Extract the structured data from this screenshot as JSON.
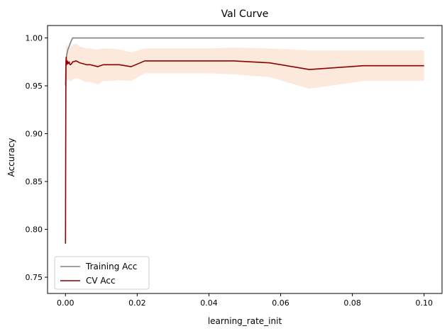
{
  "chart_data": {
    "type": "line",
    "title": "Val Curve",
    "xlabel": "learning_rate_init",
    "ylabel": "Accuracy",
    "xlim": [
      -0.005,
      0.105
    ],
    "ylim": [
      0.733,
      1.013
    ],
    "xticks": [
      0.0,
      0.02,
      0.04,
      0.06,
      0.08,
      0.1
    ],
    "xtick_labels": [
      "0.00",
      "0.02",
      "0.04",
      "0.06",
      "0.08",
      "0.10"
    ],
    "yticks": [
      0.75,
      0.8,
      0.85,
      0.9,
      0.95,
      1.0
    ],
    "ytick_labels": [
      "0.75",
      "0.80",
      "0.85",
      "0.90",
      "0.95",
      "1.00"
    ],
    "grid": false,
    "legend_position": "lower-left",
    "series": [
      {
        "name": "Training Acc",
        "color": "#808080",
        "x": [
          1e-05,
          0.0001,
          0.0002,
          0.0004,
          0.0006,
          0.0009,
          0.0012,
          0.0016,
          0.002,
          0.003,
          0.005,
          0.02,
          0.05,
          0.1
        ],
        "y": [
          0.95,
          0.97,
          0.978,
          0.983,
          0.987,
          0.99,
          0.993,
          0.997,
          1.0,
          1.0,
          1.0,
          1.0,
          1.0,
          1.0
        ]
      },
      {
        "name": "CV Acc",
        "color": "#8b0000",
        "x": [
          1e-05,
          5e-05,
          0.0001,
          0.00015,
          0.0002,
          0.0003,
          0.0005,
          0.0007,
          0.001,
          0.0013,
          0.0017,
          0.002,
          0.003,
          0.004,
          0.005,
          0.006,
          0.007,
          0.008,
          0.009,
          0.0105,
          0.0125,
          0.015,
          0.0183,
          0.0221,
          0.027,
          0.033,
          0.04,
          0.047,
          0.057,
          0.068,
          0.083,
          0.1
        ],
        "y": [
          0.785,
          0.86,
          0.94,
          0.975,
          0.98,
          0.972,
          0.976,
          0.973,
          0.975,
          0.972,
          0.973,
          0.975,
          0.976,
          0.974,
          0.973,
          0.972,
          0.972,
          0.971,
          0.97,
          0.972,
          0.972,
          0.972,
          0.97,
          0.976,
          0.976,
          0.976,
          0.976,
          0.976,
          0.974,
          0.967,
          0.971,
          0.971
        ],
        "band_lower": [
          0.75,
          0.83,
          0.92,
          0.955,
          0.96,
          0.955,
          0.956,
          0.955,
          0.957,
          0.955,
          0.955,
          0.957,
          0.958,
          0.957,
          0.955,
          0.954,
          0.954,
          0.953,
          0.951,
          0.955,
          0.955,
          0.956,
          0.955,
          0.963,
          0.963,
          0.963,
          0.963,
          0.962,
          0.959,
          0.947,
          0.955,
          0.955
        ],
        "band_upper": [
          0.82,
          0.89,
          0.96,
          0.992,
          0.995,
          0.989,
          0.995,
          0.99,
          0.993,
          0.989,
          0.992,
          0.993,
          0.994,
          0.991,
          0.99,
          0.989,
          0.989,
          0.988,
          0.988,
          0.989,
          0.989,
          0.988,
          0.985,
          0.989,
          0.989,
          0.989,
          0.989,
          0.99,
          0.989,
          0.987,
          0.987,
          0.987
        ],
        "band_color": "#fde8dc"
      }
    ]
  }
}
